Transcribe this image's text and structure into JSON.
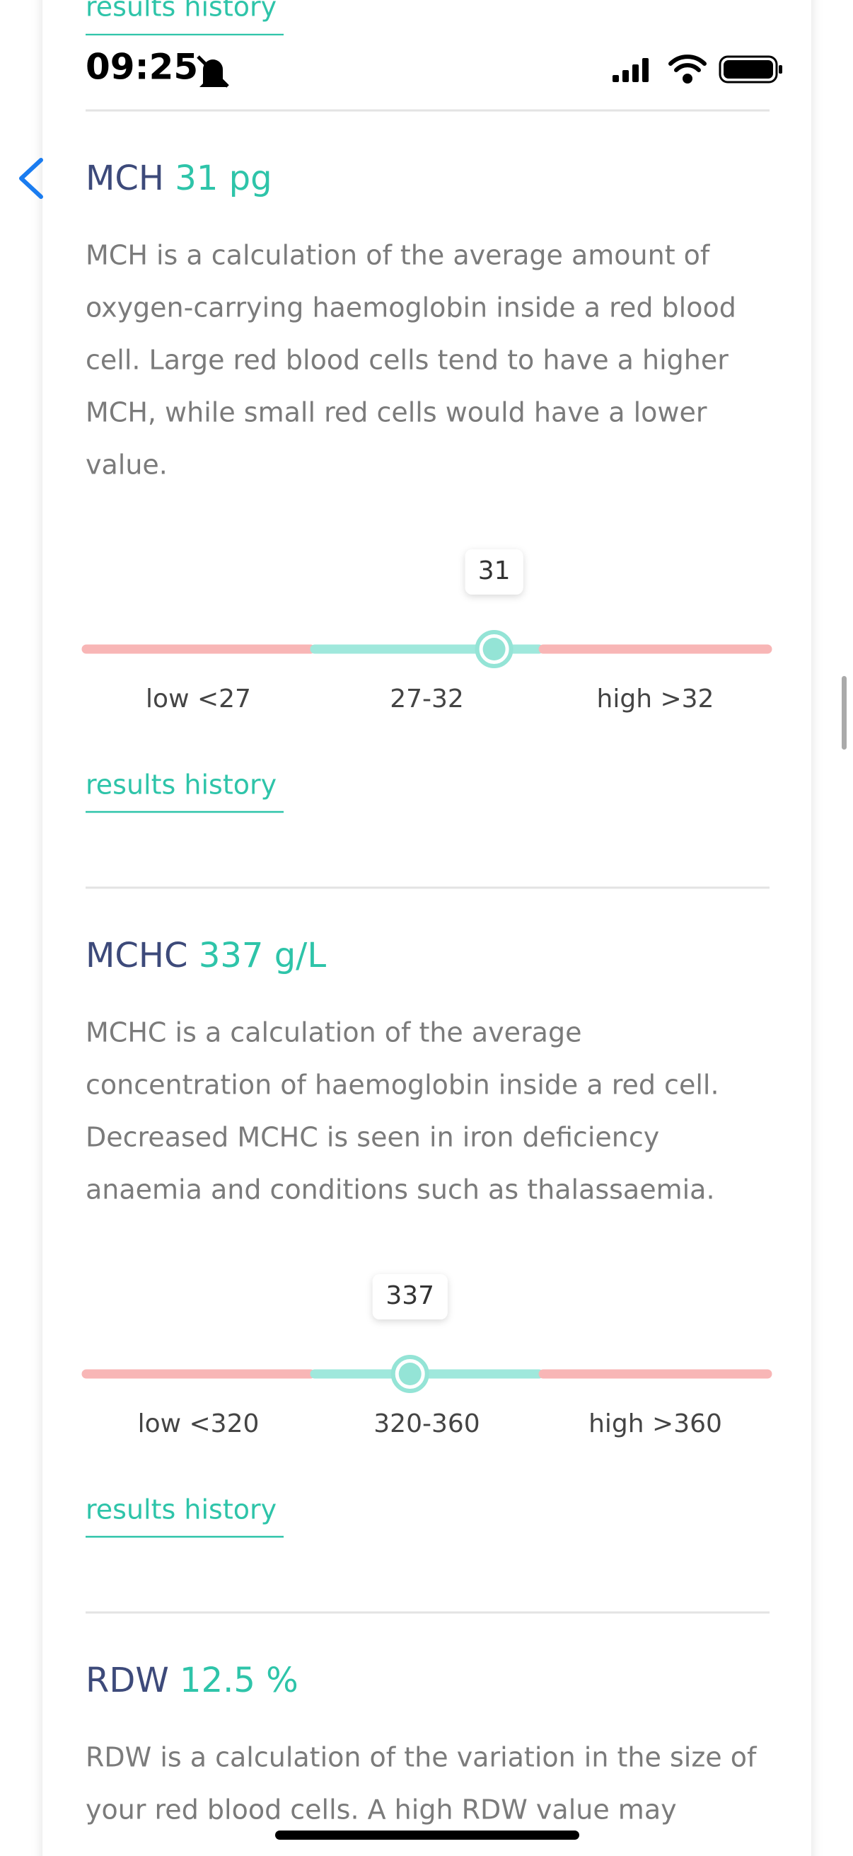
{
  "status_bar": {
    "time": "09:25"
  },
  "top_link": "results history",
  "sections": [
    {
      "name": "MCH",
      "value": 31,
      "value_label": "31 pg",
      "description": [
        "MCH is a calculation of the average amount of",
        "oxygen-carrying haemoglobin inside a red blood",
        "cell. Large red blood cells tend to have a higher",
        "MCH, while small red cells would have a lower",
        "value."
      ],
      "range": [
        27,
        32
      ],
      "range_labels": [
        "low <27",
        "27-32",
        "high >32"
      ],
      "link": "results history"
    },
    {
      "name": "MCHC",
      "value": 337,
      "value_label": "337 g/L",
      "description": [
        "MCHC is a calculation of the average",
        "concentration of haemoglobin inside a red cell.",
        "Decreased MCHC is seen in iron deficiency",
        "anaemia and conditions such as thalassaemia."
      ],
      "range": [
        320,
        360
      ],
      "range_labels": [
        "low <320",
        "320-360",
        "high >360"
      ],
      "link": "results history"
    },
    {
      "name": "RDW",
      "value": 12.5,
      "value_label": "12.5 %",
      "description": [
        "RDW is a calculation of the variation in the size of",
        "your red blood cells. A high RDW value may"
      ]
    }
  ]
}
